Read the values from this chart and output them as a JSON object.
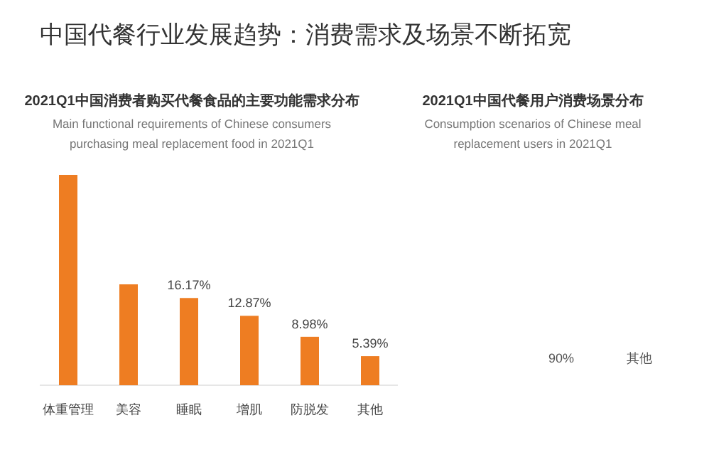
{
  "chart_data": [
    {
      "type": "other",
      "title": "中国代餐行业发展趋势：消费需求及场景不断拓宽"
    },
    {
      "type": "bar",
      "title": "2021Q1中国消费者购买代餐食品的主要功能需求分布",
      "subtitle": "Main functional requirements of Chinese consumers purchasing meal replacement food in 2021Q1",
      "categories": [
        "体重管理",
        "美容",
        "睡眠",
        "增肌",
        "防脱发",
        "其他"
      ],
      "values": [
        39,
        18.7,
        16.17,
        12.87,
        8.98,
        5.39
      ],
      "value_labels": [
        null,
        null,
        "16.17%",
        "12.87%",
        "8.98%",
        "5.39%"
      ],
      "color": "#ee7d22"
    },
    {
      "type": "other",
      "title": "2021Q1中国代餐用户消费场景分布",
      "subtitle": "Consumption scenarios of Chinese meal replacement users in  2021Q1",
      "annotations": [
        "90%",
        "其他"
      ]
    }
  ]
}
